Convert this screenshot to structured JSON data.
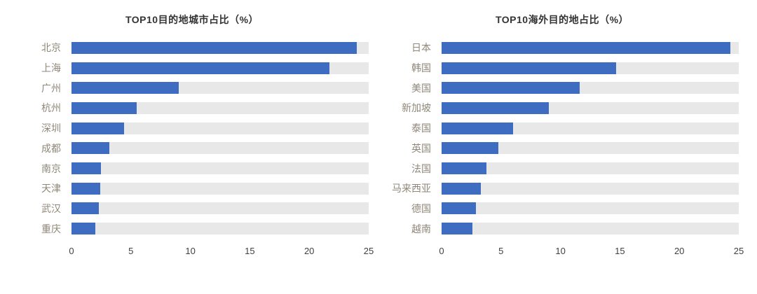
{
  "chart_data": [
    {
      "type": "bar",
      "orientation": "horizontal",
      "title": "TOP10目的地城市占比（%）",
      "categories": [
        "北京",
        "上海",
        "广州",
        "杭州",
        "深圳",
        "成都",
        "南京",
        "天津",
        "武汉",
        "重庆"
      ],
      "values": [
        24.0,
        21.7,
        9.0,
        5.5,
        4.4,
        3.2,
        2.5,
        2.4,
        2.3,
        2.0
      ],
      "xlim": [
        0,
        25
      ],
      "xticks": [
        0,
        5,
        10,
        15,
        20,
        25
      ],
      "xlabel": "",
      "ylabel": "",
      "legend": "none",
      "grid": false,
      "bar_color": "#3d6cc0",
      "track_color": "#e8e8e8"
    },
    {
      "type": "bar",
      "orientation": "horizontal",
      "title": "TOP10海外目的地占比（%）",
      "categories": [
        "日本",
        "韩国",
        "美国",
        "新加坡",
        "泰国",
        "英国",
        "法国",
        "马来西亚",
        "德国",
        "越南"
      ],
      "values": [
        24.3,
        14.7,
        11.6,
        9.0,
        6.0,
        4.8,
        3.8,
        3.3,
        2.9,
        2.6
      ],
      "xlim": [
        0,
        25
      ],
      "xticks": [
        0,
        5,
        10,
        15,
        20,
        25
      ],
      "xlabel": "",
      "ylabel": "",
      "legend": "none",
      "grid": false,
      "bar_color": "#3d6cc0",
      "track_color": "#e8e8e8"
    }
  ]
}
